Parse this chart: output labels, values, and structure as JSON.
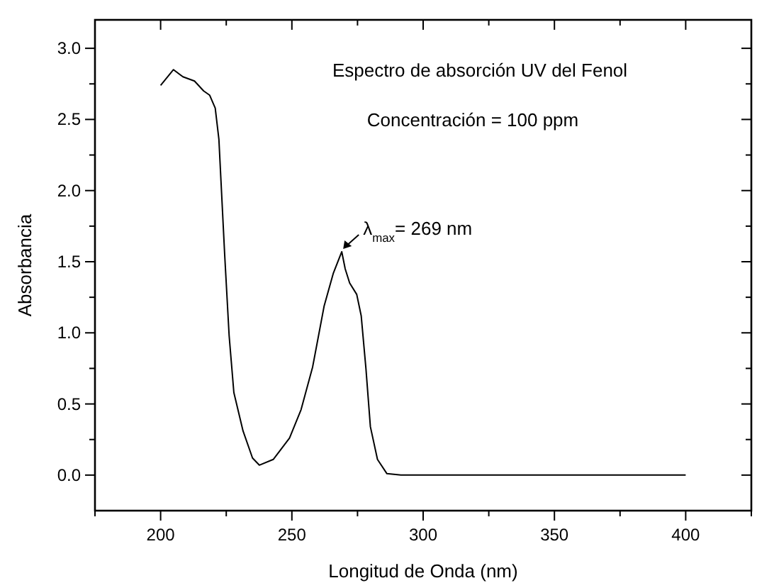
{
  "chart_data": {
    "type": "line",
    "title": "Espectro de absorción UV del Fenol",
    "subtitle": "Concentración = 100 ppm",
    "xlabel": "Longitud de Onda (nm)",
    "ylabel": "Absorbancia",
    "x": [
      200,
      204.9,
      208.5,
      212.9,
      216.4,
      218.7,
      220.8,
      222.2,
      224.4,
      226.1,
      227.9,
      231.4,
      235,
      237.6,
      242.9,
      249.1,
      253.5,
      257.9,
      262.3,
      265.8,
      269,
      270.3,
      272,
      274.7,
      276.4,
      278.2,
      279.9,
      282.6,
      286.2,
      291.5,
      300,
      320,
      350,
      400
    ],
    "series": [
      {
        "color": "#000000",
        "values": [
          2.74,
          2.85,
          2.8,
          2.77,
          2.7,
          2.67,
          2.58,
          2.36,
          1.55,
          0.98,
          0.58,
          0.31,
          0.12,
          0.07,
          0.11,
          0.26,
          0.46,
          0.76,
          1.19,
          1.42,
          1.57,
          1.45,
          1.35,
          1.27,
          1.12,
          0.75,
          0.34,
          0.11,
          0.01,
          0,
          0,
          0,
          0,
          0
        ]
      }
    ],
    "xlim": [
      175,
      425
    ],
    "ylim": [
      -0.25,
      3.2
    ],
    "xticks": [
      {
        "value": 175,
        "label": null
      },
      200,
      {
        "value": 225,
        "label": null
      },
      250,
      {
        "value": 275,
        "label": null
      },
      300,
      {
        "value": 325,
        "label": null
      },
      350,
      {
        "value": 375,
        "label": null
      },
      400,
      {
        "value": 425,
        "label": null
      }
    ],
    "yticks": [
      {
        "value": 0,
        "label": "0.0"
      },
      {
        "value": 0.25,
        "label": null
      },
      {
        "value": 0.5,
        "label": "0.5"
      },
      {
        "value": 0.75,
        "label": null
      },
      {
        "value": 1,
        "label": "1.0"
      },
      {
        "value": 1.25,
        "label": null
      },
      {
        "value": 1.5,
        "label": "1.5"
      },
      {
        "value": 1.75,
        "label": null
      },
      {
        "value": 2,
        "label": "2.0"
      },
      {
        "value": 2.25,
        "label": null
      },
      {
        "value": 2.5,
        "label": "2.5"
      },
      {
        "value": 2.75,
        "label": null
      },
      {
        "value": 3,
        "label": "3.0"
      }
    ],
    "annotations": [
      {
        "text": "λ$_{max}$= 269 nm",
        "x": 269,
        "y": 1.57
      }
    ],
    "grid": false,
    "marker": "none",
    "line_style": "solid"
  }
}
